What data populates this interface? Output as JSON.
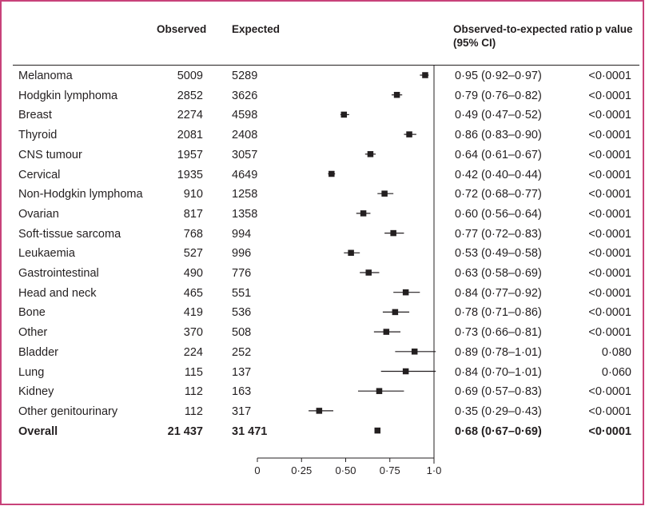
{
  "headers": {
    "observed": "Observed",
    "expected": "Expected",
    "ratio": "Observed-to-expected ratio (95% CI)",
    "p": "p value"
  },
  "rows": [
    {
      "name": "Melanoma",
      "observed": "5009",
      "expected": "5289",
      "ratio_text": "0·95 (0·92–0·97)",
      "p": "<0·0001"
    },
    {
      "name": "Hodgkin lymphoma",
      "observed": "2852",
      "expected": "3626",
      "ratio_text": "0·79 (0·76–0·82)",
      "p": "<0·0001"
    },
    {
      "name": "Breast",
      "observed": "2274",
      "expected": "4598",
      "ratio_text": "0·49 (0·47–0·52)",
      "p": "<0·0001"
    },
    {
      "name": "Thyroid",
      "observed": "2081",
      "expected": "2408",
      "ratio_text": "0·86 (0·83–0·90)",
      "p": "<0·0001"
    },
    {
      "name": "CNS tumour",
      "observed": "1957",
      "expected": "3057",
      "ratio_text": "0·64 (0·61–0·67)",
      "p": "<0·0001"
    },
    {
      "name": "Cervical",
      "observed": "1935",
      "expected": "4649",
      "ratio_text": "0·42 (0·40–0·44)",
      "p": "<0·0001"
    },
    {
      "name": "Non-Hodgkin lymphoma",
      "observed": "910",
      "expected": "1258",
      "ratio_text": "0·72 (0·68–0·77)",
      "p": "<0·0001"
    },
    {
      "name": "Ovarian",
      "observed": "817",
      "expected": "1358",
      "ratio_text": "0·60 (0·56–0·64)",
      "p": "<0·0001"
    },
    {
      "name": "Soft-tissue sarcoma",
      "observed": "768",
      "expected": "994",
      "ratio_text": "0·77 (0·72–0·83)",
      "p": "<0·0001"
    },
    {
      "name": "Leukaemia",
      "observed": "527",
      "expected": "996",
      "ratio_text": "0·53 (0·49–0·58)",
      "p": "<0·0001"
    },
    {
      "name": "Gastrointestinal",
      "observed": "490",
      "expected": "776",
      "ratio_text": "0·63 (0·58–0·69)",
      "p": "<0·0001"
    },
    {
      "name": "Head and neck",
      "observed": "465",
      "expected": "551",
      "ratio_text": "0·84 (0·77–0·92)",
      "p": "<0·0001"
    },
    {
      "name": "Bone",
      "observed": "419",
      "expected": "536",
      "ratio_text": "0·78 (0·71–0·86)",
      "p": "<0·0001"
    },
    {
      "name": "Other",
      "observed": "370",
      "expected": "508",
      "ratio_text": "0·73 (0·66–0·81)",
      "p": "<0·0001"
    },
    {
      "name": "Bladder",
      "observed": "224",
      "expected": "252",
      "ratio_text": "0·89 (0·78–1·01)",
      "p": "0·080"
    },
    {
      "name": "Lung",
      "observed": "115",
      "expected": "137",
      "ratio_text": "0·84 (0·70–1·01)",
      "p": "0·060"
    },
    {
      "name": "Kidney",
      "observed": "112",
      "expected": "163",
      "ratio_text": "0·69 (0·57–0·83)",
      "p": "<0·0001"
    },
    {
      "name": "Other genitourinary",
      "observed": "112",
      "expected": "317",
      "ratio_text": "0·35 (0·29–0·43)",
      "p": "<0·0001"
    },
    {
      "name": "Overall",
      "observed": "21 437",
      "expected": "31 471",
      "ratio_text": "0·68 (0·67–0·69)",
      "p": "<0·0001",
      "bold": true
    }
  ],
  "chart_data": {
    "type": "scatter",
    "subtype": "forest-plot",
    "categories": [
      "Melanoma",
      "Hodgkin lymphoma",
      "Breast",
      "Thyroid",
      "CNS tumour",
      "Cervical",
      "Non-Hodgkin lymphoma",
      "Ovarian",
      "Soft-tissue sarcoma",
      "Leukaemia",
      "Gastrointestinal",
      "Head and neck",
      "Bone",
      "Other",
      "Bladder",
      "Lung",
      "Kidney",
      "Other genitourinary",
      "Overall"
    ],
    "values": [
      0.95,
      0.79,
      0.49,
      0.86,
      0.64,
      0.42,
      0.72,
      0.6,
      0.77,
      0.53,
      0.63,
      0.84,
      0.78,
      0.73,
      0.89,
      0.84,
      0.69,
      0.35,
      0.68
    ],
    "ci_low": [
      0.92,
      0.76,
      0.47,
      0.83,
      0.61,
      0.4,
      0.68,
      0.56,
      0.72,
      0.49,
      0.58,
      0.77,
      0.71,
      0.66,
      0.78,
      0.7,
      0.57,
      0.29,
      0.67
    ],
    "ci_high": [
      0.97,
      0.82,
      0.52,
      0.9,
      0.67,
      0.44,
      0.77,
      0.64,
      0.83,
      0.58,
      0.69,
      0.92,
      0.86,
      0.81,
      1.01,
      1.01,
      0.83,
      0.43,
      0.69
    ],
    "reference_line": 1.0,
    "xlim": [
      0,
      1.0
    ],
    "xticks": [
      0,
      0.25,
      0.5,
      0.75,
      1.0
    ],
    "xtick_labels": [
      "0",
      "0·25",
      "0·50",
      "0·75",
      "1·0"
    ]
  }
}
